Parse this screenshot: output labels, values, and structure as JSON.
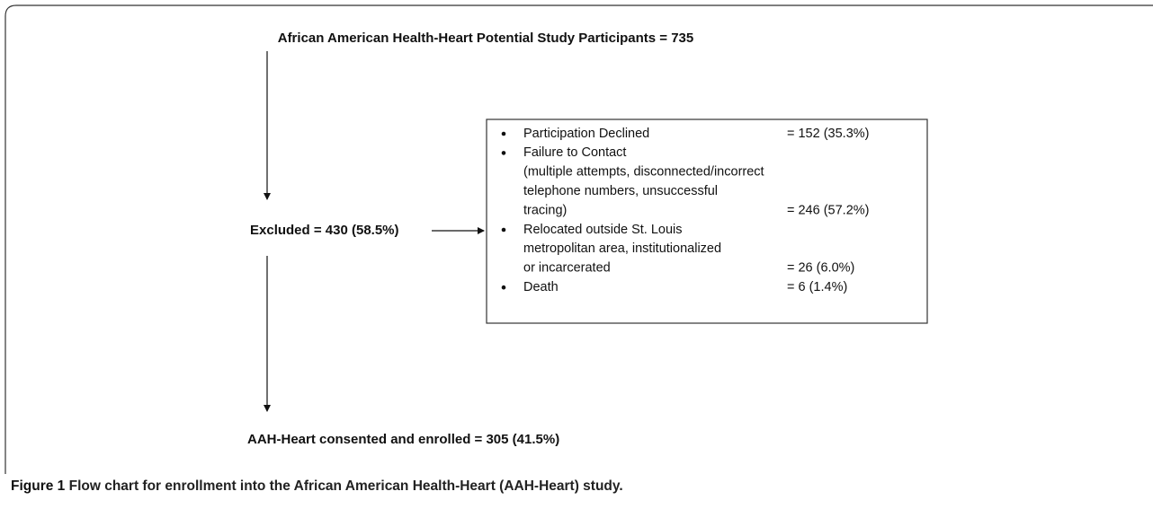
{
  "title": "African American Health-Heart Potential Study Participants = 735",
  "excluded": "Excluded = 430 (58.5%)",
  "enrolled": "AAH-Heart consented and enrolled = 305 (41.5%)",
  "exclusions": [
    {
      "lines": [
        "Participation Declined"
      ],
      "value": "= 152 (35.3%)"
    },
    {
      "lines": [
        "Failure to Contact",
        "(multiple attempts, disconnected/incorrect",
        "telephone numbers, unsuccessful",
        "tracing)"
      ],
      "value": "= 246 (57.2%)"
    },
    {
      "lines": [
        "Relocated outside St. Louis",
        "metropolitan area, institutionalized",
        "or incarcerated"
      ],
      "value": "= 26 (6.0%)"
    },
    {
      "lines": [
        "Death"
      ],
      "value": "= 6 (1.4%)"
    }
  ],
  "caption": {
    "label": "Figure 1",
    "text": "Flow chart for enrollment into the African American Health-Heart (AAH-Heart) study."
  }
}
